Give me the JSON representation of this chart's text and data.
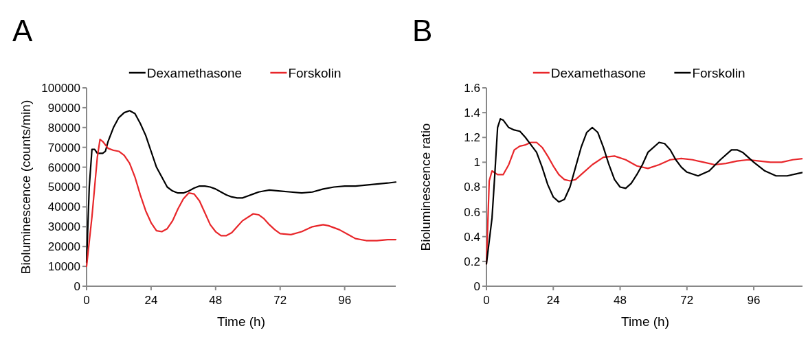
{
  "chart_data": [
    {
      "type": "line",
      "title": "A",
      "xlabel": "Time (h)",
      "ylabel": "Bioluminescence (counts/min)",
      "xlim": [
        0,
        115
      ],
      "xticks": [
        0,
        24,
        48,
        72,
        96
      ],
      "ylim": [
        0,
        100000
      ],
      "yticks": [
        0,
        10000,
        20000,
        30000,
        40000,
        50000,
        60000,
        70000,
        80000,
        90000,
        100000
      ],
      "legend": "top",
      "grid": false,
      "marker": "none",
      "line_style": "solid",
      "series": [
        {
          "name": "Dexamethasone",
          "color": "#000000",
          "x": [
            0,
            1,
            2,
            3,
            4,
            6,
            7,
            8,
            10,
            12,
            14,
            16,
            18,
            20,
            22,
            24,
            26,
            28,
            30,
            32,
            34,
            36,
            38,
            40,
            42,
            44,
            46,
            48,
            50,
            52,
            54,
            56,
            58,
            60,
            62,
            64,
            66,
            68,
            72,
            76,
            80,
            84,
            88,
            92,
            96,
            100,
            104,
            108,
            112,
            115
          ],
          "values": [
            12000,
            50000,
            69000,
            69000,
            67000,
            67000,
            68000,
            73000,
            80000,
            85000,
            87500,
            88500,
            87000,
            82000,
            76000,
            68000,
            60000,
            55000,
            50000,
            48000,
            47000,
            47000,
            48000,
            49500,
            50500,
            50500,
            50000,
            49000,
            47500,
            46000,
            45000,
            44500,
            44500,
            45500,
            46500,
            47500,
            48000,
            48500,
            48000,
            47500,
            47000,
            47500,
            49000,
            50000,
            50500,
            50500,
            51000,
            51500,
            52000,
            52500
          ]
        },
        {
          "name": "Forskolin",
          "color": "#e8262a",
          "x": [
            0,
            2,
            4,
            5,
            6,
            8,
            10,
            12,
            14,
            16,
            18,
            20,
            22,
            24,
            26,
            28,
            30,
            32,
            34,
            36,
            38,
            40,
            42,
            44,
            46,
            48,
            50,
            52,
            54,
            56,
            58,
            62,
            64,
            66,
            68,
            70,
            72,
            76,
            80,
            84,
            88,
            90,
            94,
            98,
            100,
            104,
            108,
            112,
            115
          ],
          "values": [
            10000,
            35000,
            65000,
            74000,
            73000,
            69500,
            68500,
            68000,
            66000,
            62000,
            55000,
            46000,
            38000,
            32000,
            28000,
            27500,
            29000,
            33000,
            39000,
            44000,
            47000,
            46500,
            43000,
            37000,
            31000,
            27500,
            25500,
            25500,
            27000,
            30000,
            33000,
            36500,
            36000,
            34000,
            31000,
            28500,
            26500,
            26000,
            27500,
            30000,
            31000,
            30500,
            28500,
            25500,
            24000,
            23000,
            23000,
            23500,
            23500
          ]
        }
      ]
    },
    {
      "type": "line",
      "title": "B",
      "xlabel": "Time (h)",
      "ylabel": "Bioluminescence ratio",
      "xlim": [
        0,
        114
      ],
      "xticks": [
        0,
        24,
        48,
        72,
        96
      ],
      "ylim": [
        0,
        1.6
      ],
      "yticks": [
        0,
        0.2,
        0.4,
        0.6,
        0.8,
        1,
        1.2,
        1.4,
        1.6
      ],
      "legend": "top",
      "grid": false,
      "marker": "none",
      "line_style": "solid",
      "series": [
        {
          "name": "Dexamethasone",
          "color": "#e8262a",
          "x": [
            0,
            1,
            2,
            4,
            6,
            8,
            10,
            12,
            14,
            16,
            18,
            20,
            22,
            24,
            26,
            28,
            30,
            32,
            34,
            38,
            42,
            46,
            50,
            54,
            58,
            62,
            66,
            70,
            74,
            78,
            82,
            86,
            90,
            94,
            98,
            102,
            106,
            110,
            114
          ],
          "values": [
            0.18,
            0.85,
            0.93,
            0.9,
            0.9,
            0.98,
            1.1,
            1.13,
            1.14,
            1.16,
            1.16,
            1.12,
            1.05,
            0.97,
            0.9,
            0.86,
            0.85,
            0.86,
            0.9,
            0.98,
            1.04,
            1.05,
            1.02,
            0.97,
            0.95,
            0.98,
            1.02,
            1.03,
            1.02,
            1.0,
            0.98,
            0.99,
            1.01,
            1.02,
            1.01,
            1.0,
            1.0,
            1.02,
            1.03
          ]
        },
        {
          "name": "Forskolin",
          "color": "#000000",
          "x": [
            0,
            2,
            3,
            4,
            5,
            6,
            8,
            10,
            12,
            14,
            16,
            18,
            20,
            22,
            24,
            26,
            28,
            30,
            32,
            34,
            36,
            38,
            40,
            42,
            44,
            46,
            48,
            50,
            52,
            54,
            56,
            58,
            62,
            64,
            66,
            68,
            70,
            72,
            76,
            80,
            84,
            88,
            90,
            92,
            96,
            100,
            104,
            108,
            112,
            114
          ],
          "values": [
            0.18,
            0.55,
            0.9,
            1.28,
            1.35,
            1.34,
            1.28,
            1.26,
            1.25,
            1.2,
            1.14,
            1.08,
            0.96,
            0.82,
            0.72,
            0.68,
            0.7,
            0.8,
            0.96,
            1.12,
            1.24,
            1.28,
            1.24,
            1.12,
            0.98,
            0.86,
            0.8,
            0.79,
            0.83,
            0.9,
            0.98,
            1.08,
            1.16,
            1.15,
            1.1,
            1.02,
            0.96,
            0.92,
            0.89,
            0.93,
            1.02,
            1.1,
            1.1,
            1.08,
            1.0,
            0.93,
            0.89,
            0.89,
            0.91,
            0.92
          ]
        }
      ]
    }
  ]
}
